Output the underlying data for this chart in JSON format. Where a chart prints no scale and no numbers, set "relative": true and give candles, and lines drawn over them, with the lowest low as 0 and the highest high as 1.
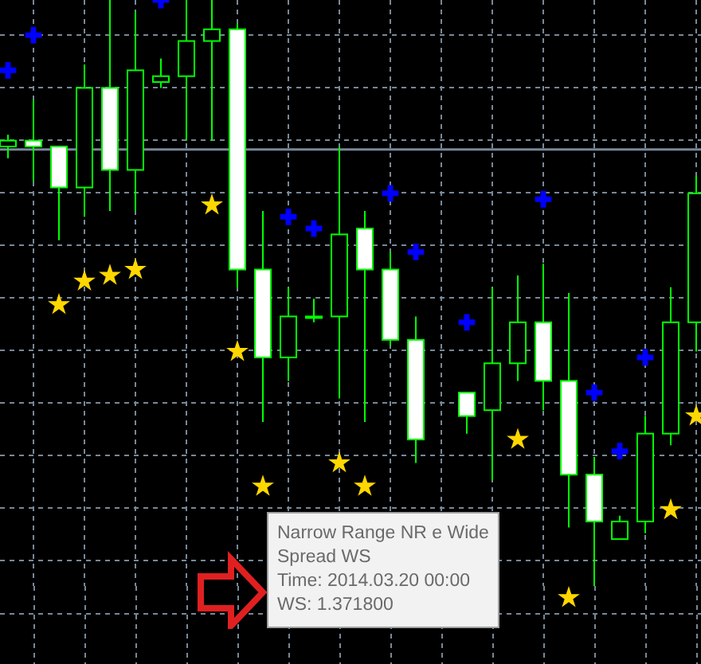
{
  "chart_data": {
    "type": "candlestick",
    "relative": true,
    "grid": true,
    "categories": [
      null,
      null,
      null,
      null,
      null,
      null,
      null,
      null,
      null,
      null,
      null,
      null,
      null,
      null,
      null,
      null,
      null,
      null,
      null,
      null,
      null,
      null,
      null,
      null,
      null,
      null,
      null,
      null
    ],
    "series": [
      {
        "color": "#00ff00",
        "ohlc": [
          [
            0.75,
            0.77,
            0.73,
            0.76
          ],
          [
            0.76,
            0.83,
            0.69,
            0.75
          ],
          [
            0.75,
            0.75,
            0.59,
            0.68
          ],
          [
            0.68,
            0.89,
            0.63,
            0.85
          ],
          [
            0.85,
            1.0,
            0.64,
            0.71
          ],
          [
            0.71,
            0.98,
            0.64,
            0.88
          ],
          [
            0.86,
            0.9,
            0.85,
            0.87
          ],
          [
            0.87,
            1.0,
            0.76,
            0.93
          ],
          [
            0.93,
            1.0,
            0.76,
            0.95
          ],
          [
            0.95,
            0.96,
            0.51,
            0.54
          ],
          [
            0.54,
            0.64,
            0.28,
            0.39
          ],
          [
            0.39,
            0.51,
            0.35,
            0.46
          ],
          [
            0.46,
            0.49,
            0.45,
            0.46
          ],
          [
            0.46,
            0.75,
            0.32,
            0.6
          ],
          [
            0.61,
            0.64,
            0.28,
            0.54
          ],
          [
            0.54,
            0.57,
            0.41,
            0.42
          ],
          [
            0.42,
            0.46,
            0.21,
            0.25
          ],
          null,
          [
            0.33,
            0.33,
            0.26,
            0.29
          ],
          [
            0.3,
            0.51,
            0.18,
            0.38
          ],
          [
            0.38,
            0.53,
            0.35,
            0.45
          ],
          [
            0.45,
            0.55,
            0.3,
            0.35
          ],
          [
            0.35,
            0.5,
            0.1,
            0.19
          ],
          [
            0.19,
            0.22,
            0.0,
            0.11
          ],
          [
            0.08,
            0.12,
            0.08,
            0.11
          ],
          [
            0.11,
            0.29,
            0.09,
            0.26
          ],
          [
            0.26,
            0.51,
            0.24,
            0.45
          ],
          [
            0.45,
            0.7,
            0.4,
            0.67
          ]
        ]
      },
      {
        "type": "scatter",
        "color": "#ffd700",
        "marker": "star",
        "values": [
          null,
          null,
          0.48,
          0.52,
          0.53,
          0.54,
          null,
          null,
          0.65,
          0.4,
          0.17,
          null,
          null,
          0.21,
          0.17,
          null,
          null,
          null,
          null,
          null,
          0.25,
          null,
          -0.02,
          null,
          null,
          null,
          0.13,
          0.29
        ]
      },
      {
        "type": "scatter",
        "color": "#0000ff",
        "marker": "cross",
        "values": [
          0.88,
          0.94,
          null,
          null,
          null,
          null,
          1.0,
          null,
          null,
          null,
          null,
          0.63,
          0.61,
          null,
          null,
          0.67,
          0.57,
          null,
          0.45,
          null,
          null,
          0.66,
          null,
          0.33,
          0.23,
          0.39,
          null,
          null
        ]
      }
    ],
    "ref_lines": [
      {
        "axis": "y",
        "value": 0.745,
        "color": "#778899"
      }
    ],
    "annotations": [
      "Narrow Range NR e Wide Spread WS",
      "Time: 2014.03.20 00:00",
      "WS: 1.371800"
    ]
  }
}
